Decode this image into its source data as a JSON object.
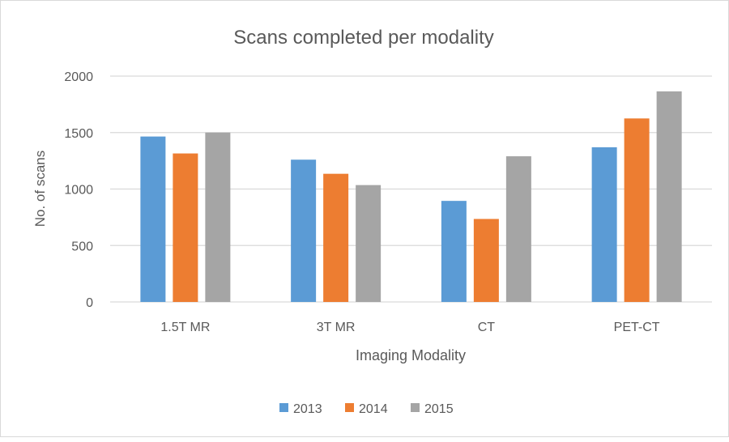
{
  "chart_data": {
    "type": "bar",
    "title": "Scans completed  per modality",
    "xlabel": "Imaging Modality",
    "ylabel": "No. of scans",
    "categories": [
      "1.5T MR",
      "3T MR",
      "CT",
      "PET-CT"
    ],
    "series": [
      {
        "name": "2013",
        "color": "#5b9bd5",
        "values": [
          1465,
          1260,
          895,
          1370
        ]
      },
      {
        "name": "2014",
        "color": "#ed7d31",
        "values": [
          1315,
          1135,
          735,
          1625
        ]
      },
      {
        "name": "2015",
        "color": "#a5a5a5",
        "values": [
          1500,
          1035,
          1290,
          1865
        ]
      }
    ],
    "ylim": [
      0,
      2000
    ],
    "yticks": [
      0,
      500,
      1000,
      1500,
      2000
    ],
    "grid": true,
    "legend": "bottom"
  }
}
